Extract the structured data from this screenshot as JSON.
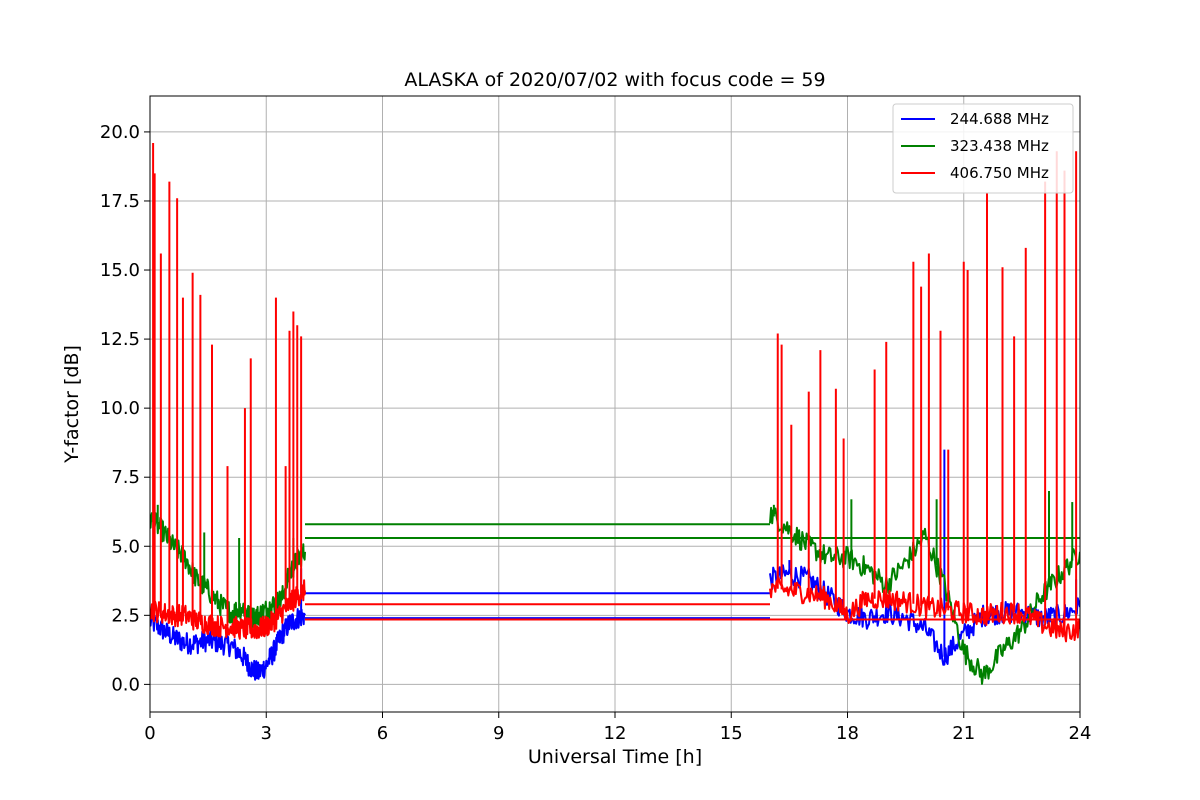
{
  "chart_data": {
    "type": "line",
    "title": "ALASKA of 2020/07/02 with focus code = 59",
    "xlabel": "Universal Time [h]",
    "ylabel": "Y-factor [dB]",
    "xlim": [
      0,
      24
    ],
    "ylim": [
      -1.0,
      21.3
    ],
    "xticks": [
      0,
      3,
      6,
      9,
      12,
      15,
      18,
      21,
      24
    ],
    "xtick_labels": [
      "0",
      "3",
      "6",
      "9",
      "12",
      "15",
      "18",
      "21",
      "24"
    ],
    "yticks": [
      0,
      2.5,
      5,
      7.5,
      10,
      12.5,
      15,
      17.5,
      20
    ],
    "ytick_labels": [
      "0.0",
      "2.5",
      "5.0",
      "7.5",
      "10.0",
      "12.5",
      "15.0",
      "17.5",
      "20.0"
    ],
    "grid": true,
    "legend_position": "top-right",
    "series": [
      {
        "name": "244.688 MHz",
        "color": "#0000ff",
        "segments": [
          {
            "x": [
              0.0,
              0.3,
              0.6,
              0.9,
              1.2,
              1.5,
              1.8,
              2.1,
              2.4,
              2.6,
              2.8,
              3.0,
              3.2,
              3.4,
              3.6,
              3.8,
              4.0
            ],
            "y": [
              2.3,
              2.0,
              1.7,
              1.5,
              1.5,
              1.6,
              1.5,
              1.4,
              1.0,
              0.6,
              0.4,
              0.7,
              1.2,
              1.8,
              2.2,
              2.4,
              2.5
            ]
          },
          {
            "x": [
              4.0,
              16.0
            ],
            "y": [
              3.3,
              3.3
            ]
          },
          {
            "x": [
              4.0,
              16.0
            ],
            "y": [
              2.4,
              2.4
            ]
          },
          {
            "x": [
              16.0,
              16.5,
              17.0,
              17.5,
              18.0,
              18.5,
              19.0,
              19.5,
              20.0,
              20.5,
              21.0,
              21.5,
              22.0,
              22.5,
              23.0,
              23.5,
              24.0
            ],
            "y": [
              3.8,
              4.0,
              3.8,
              3.2,
              2.6,
              2.4,
              2.6,
              2.4,
              2.0,
              1.0,
              1.8,
              2.5,
              2.6,
              2.6,
              2.4,
              2.5,
              2.8
            ]
          }
        ],
        "spikes": [
          {
            "x": 0.1,
            "y": 3.2
          },
          {
            "x": 3.9,
            "y": 4.2
          },
          {
            "x": 16.5,
            "y": 4.5
          },
          {
            "x": 20.5,
            "y": 8.5
          },
          {
            "x": 23.9,
            "y": 3.8
          }
        ]
      },
      {
        "name": "323.438 MHz",
        "color": "#008000",
        "segments": [
          {
            "x": [
              0.0,
              0.3,
              0.6,
              0.9,
              1.2,
              1.5,
              1.8,
              2.1,
              2.4,
              2.6,
              2.8,
              3.0,
              3.2,
              3.4,
              3.6,
              3.8,
              4.0
            ],
            "y": [
              6.0,
              5.6,
              5.0,
              4.6,
              3.8,
              3.4,
              2.9,
              2.6,
              2.8,
              2.4,
              2.5,
              2.7,
              2.9,
              3.1,
              4.0,
              4.5,
              4.8
            ]
          },
          {
            "x": [
              4.0,
              16.0
            ],
            "y": [
              5.8,
              5.8
            ]
          },
          {
            "x": [
              4.0,
              24.0
            ],
            "y": [
              5.3,
              5.3
            ]
          },
          {
            "x": [
              16.0,
              16.5,
              17.0,
              17.5,
              18.0,
              18.5,
              19.0,
              19.5,
              20.0,
              20.5,
              21.0,
              21.5,
              22.0,
              22.5,
              23.0,
              23.5,
              24.0
            ],
            "y": [
              6.2,
              5.6,
              5.0,
              4.6,
              4.6,
              4.2,
              3.6,
              4.4,
              5.4,
              3.6,
              1.2,
              0.3,
              1.2,
              2.0,
              3.2,
              4.0,
              4.8
            ]
          }
        ],
        "spikes": [
          {
            "x": 0.2,
            "y": 6.5
          },
          {
            "x": 1.4,
            "y": 5.5
          },
          {
            "x": 2.3,
            "y": 5.3
          },
          {
            "x": 3.7,
            "y": 5.3
          },
          {
            "x": 16.1,
            "y": 6.5
          },
          {
            "x": 18.1,
            "y": 6.7
          },
          {
            "x": 20.3,
            "y": 6.7
          },
          {
            "x": 23.2,
            "y": 7.0
          },
          {
            "x": 23.8,
            "y": 6.6
          }
        ]
      },
      {
        "name": "406.750 MHz",
        "color": "#ff0000",
        "segments": [
          {
            "x": [
              0.0,
              0.3,
              0.6,
              0.9,
              1.2,
              1.5,
              1.8,
              2.1,
              2.4,
              2.6,
              2.8,
              3.0,
              3.2,
              3.4,
              3.6,
              3.8,
              4.0
            ],
            "y": [
              2.7,
              2.6,
              2.5,
              2.5,
              2.3,
              2.2,
              2.1,
              2.1,
              2.0,
              2.0,
              2.0,
              2.1,
              2.3,
              2.6,
              2.9,
              3.2,
              3.4
            ]
          },
          {
            "x": [
              4.0,
              16.0
            ],
            "y": [
              2.9,
              2.9
            ]
          },
          {
            "x": [
              4.0,
              24.0
            ],
            "y": [
              2.35,
              2.35
            ]
          },
          {
            "x": [
              16.0,
              16.5,
              17.0,
              17.5,
              18.0,
              18.5,
              19.0,
              19.5,
              20.0,
              20.5,
              21.0,
              21.5,
              22.0,
              22.5,
              23.0,
              23.5,
              24.0
            ],
            "y": [
              3.5,
              3.4,
              3.3,
              3.1,
              2.5,
              3.1,
              3.1,
              3.0,
              2.8,
              2.7,
              2.6,
              2.5,
              2.6,
              2.6,
              2.2,
              1.9,
              2.0
            ]
          }
        ],
        "spikes": [
          {
            "x": 0.08,
            "y": 19.6
          },
          {
            "x": 0.12,
            "y": 18.5
          },
          {
            "x": 0.28,
            "y": 15.6
          },
          {
            "x": 0.5,
            "y": 18.2
          },
          {
            "x": 0.7,
            "y": 17.6
          },
          {
            "x": 0.85,
            "y": 14.0
          },
          {
            "x": 1.1,
            "y": 14.9
          },
          {
            "x": 1.3,
            "y": 14.1
          },
          {
            "x": 1.6,
            "y": 12.3
          },
          {
            "x": 2.0,
            "y": 7.9
          },
          {
            "x": 2.45,
            "y": 10.0
          },
          {
            "x": 2.6,
            "y": 11.8
          },
          {
            "x": 3.25,
            "y": 14.0
          },
          {
            "x": 3.5,
            "y": 7.9
          },
          {
            "x": 3.6,
            "y": 12.8
          },
          {
            "x": 3.7,
            "y": 13.5
          },
          {
            "x": 3.8,
            "y": 13.0
          },
          {
            "x": 3.9,
            "y": 12.6
          },
          {
            "x": 16.2,
            "y": 12.7
          },
          {
            "x": 16.3,
            "y": 12.3
          },
          {
            "x": 16.55,
            "y": 9.4
          },
          {
            "x": 17.0,
            "y": 10.6
          },
          {
            "x": 17.3,
            "y": 12.1
          },
          {
            "x": 17.7,
            "y": 10.7
          },
          {
            "x": 17.9,
            "y": 8.9
          },
          {
            "x": 18.7,
            "y": 11.4
          },
          {
            "x": 19.0,
            "y": 12.4
          },
          {
            "x": 19.7,
            "y": 15.3
          },
          {
            "x": 19.9,
            "y": 14.4
          },
          {
            "x": 20.1,
            "y": 15.6
          },
          {
            "x": 20.4,
            "y": 12.8
          },
          {
            "x": 20.6,
            "y": 8.5
          },
          {
            "x": 21.0,
            "y": 15.3
          },
          {
            "x": 21.1,
            "y": 15.0
          },
          {
            "x": 21.6,
            "y": 17.8
          },
          {
            "x": 22.0,
            "y": 15.1
          },
          {
            "x": 22.3,
            "y": 12.6
          },
          {
            "x": 22.6,
            "y": 15.8
          },
          {
            "x": 23.1,
            "y": 18.2
          },
          {
            "x": 23.4,
            "y": 19.3
          },
          {
            "x": 23.6,
            "y": 18.6
          },
          {
            "x": 23.9,
            "y": 19.3
          }
        ]
      }
    ]
  }
}
